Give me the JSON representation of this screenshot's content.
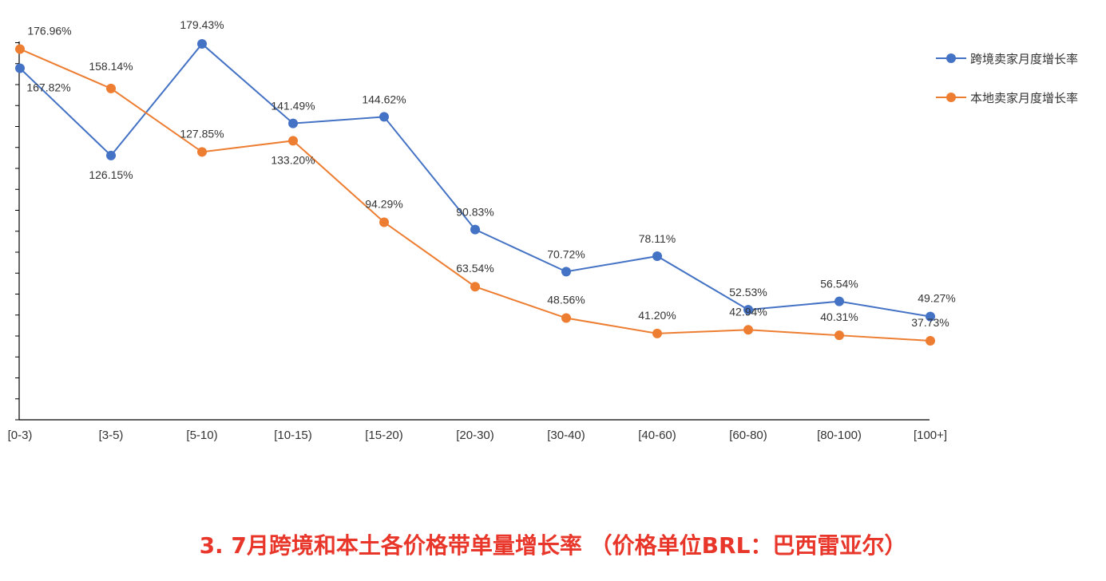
{
  "caption": "3. 7月跨境和本土各价格带单量增长率 （价格单位BRL：巴西雷亚尔）",
  "chart_data": {
    "type": "line",
    "title": "3. 7月跨境和本土各价格带单量增长率 （价格单位BRL：巴西雷亚尔）",
    "xlabel": "",
    "ylabel": "",
    "categories": [
      "[0-3)",
      "[3-5)",
      "[5-10)",
      "[10-15)",
      "[15-20)",
      "[20-30)",
      "[30-40)",
      "[40-60)",
      "[60-80)",
      "[80-100)",
      "[100+]"
    ],
    "ylim": [
      0,
      190
    ],
    "grid": false,
    "legend_position": "top-right",
    "series": [
      {
        "name": "跨境卖家月度增长率",
        "color": "#4472c4",
        "values": [
          167.82,
          126.15,
          179.43,
          141.49,
          144.62,
          90.83,
          70.72,
          78.11,
          52.53,
          56.54,
          49.27
        ],
        "labels": [
          "167.82%",
          "126.15%",
          "179.43%",
          "141.49%",
          "144.62%",
          "90.83%",
          "70.72%",
          "78.11%",
          "52.53%",
          "56.54%",
          "49.27%"
        ]
      },
      {
        "name": "本地卖家月度增长率",
        "color": "#ed7d31",
        "values": [
          176.96,
          158.14,
          127.85,
          133.2,
          94.29,
          63.54,
          48.56,
          41.2,
          42.94,
          40.31,
          37.73
        ],
        "labels": [
          "176.96%",
          "158.14%",
          "127.85%",
          "133.20%",
          "94.29%",
          "63.54%",
          "48.56%",
          "41.20%",
          "42.94%",
          "40.31%",
          "37.73%"
        ]
      }
    ]
  }
}
